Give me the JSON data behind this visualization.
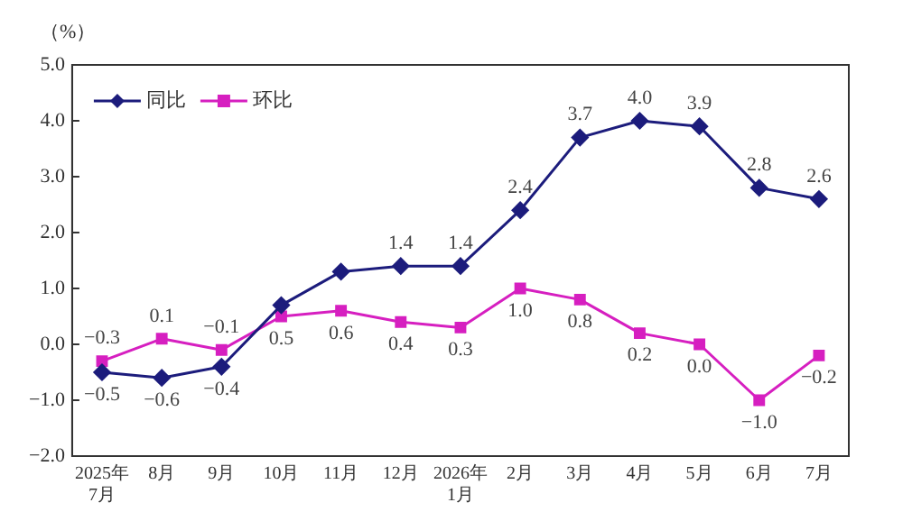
{
  "chart_data": {
    "type": "line",
    "ylabel": "（%）",
    "categories": [
      "2025年\n7月",
      "8月",
      "9月",
      "10月",
      "11月",
      "12月",
      "2026年\n1月",
      "2月",
      "3月",
      "4月",
      "5月",
      "6月",
      "7月"
    ],
    "series": [
      {
        "name": "同比",
        "color": "#1c1c7c",
        "marker": "diamond",
        "values": [
          -0.5,
          -0.6,
          -0.4,
          0.7,
          1.3,
          1.4,
          1.4,
          2.4,
          3.7,
          4.0,
          3.9,
          2.8,
          2.6
        ],
        "value_labels": [
          "−0.5",
          "−0.6",
          "−0.4",
          null,
          null,
          "1.4",
          "1.4",
          "2.4",
          "3.7",
          "4.0",
          "3.9",
          "2.8",
          "2.6"
        ]
      },
      {
        "name": "环比",
        "color": "#d61fc0",
        "marker": "square",
        "values": [
          -0.3,
          0.1,
          -0.1,
          0.5,
          0.6,
          0.4,
          0.3,
          1.0,
          0.8,
          0.2,
          0.0,
          -1.0,
          -0.2
        ],
        "value_labels": [
          "−0.3",
          "0.1",
          "−0.1",
          "0.5",
          "0.6",
          "0.4",
          "0.3",
          "1.0",
          "0.8",
          "0.2",
          "0.0",
          "−1.0",
          "−0.2"
        ]
      }
    ],
    "ylim": [
      -2,
      5
    ],
    "yticks": [
      {
        "value": -2,
        "label": "−2.0"
      },
      {
        "value": -1,
        "label": "−1.0"
      },
      {
        "value": 0,
        "label": "0.0"
      },
      {
        "value": 1,
        "label": "1.0"
      },
      {
        "value": 2,
        "label": "2.0"
      },
      {
        "value": 3,
        "label": "3.0"
      },
      {
        "value": 4,
        "label": "4.0"
      },
      {
        "value": 5,
        "label": "5.0"
      }
    ],
    "grid": false,
    "legend": "top left",
    "line_style": "solid"
  }
}
